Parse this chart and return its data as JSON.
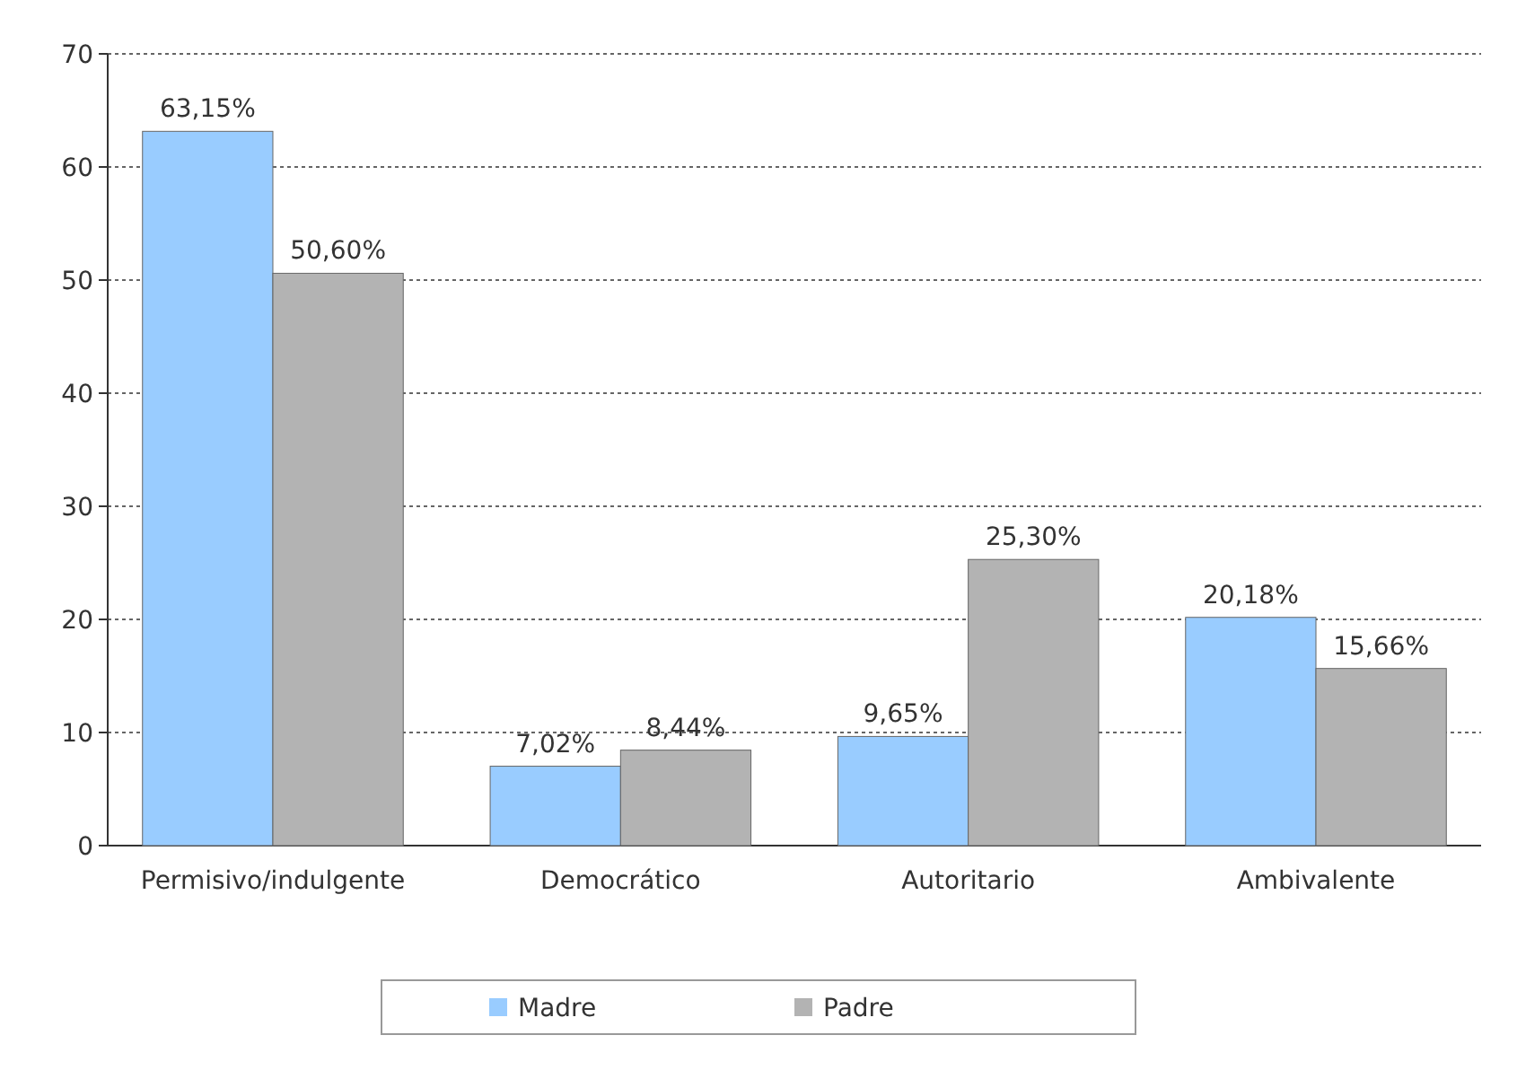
{
  "chart_data": {
    "type": "bar",
    "categories": [
      "Permisivo/indulgente",
      "Democrático",
      "Autoritario",
      "Ambivalente"
    ],
    "series": [
      {
        "name": "Madre",
        "color": "#99ccff",
        "values": [
          63.15,
          7.02,
          9.65,
          20.18
        ],
        "value_labels": [
          "63,15%",
          "7,02%",
          "9,65%",
          "20,18%"
        ]
      },
      {
        "name": "Padre",
        "color": "#b3b3b3",
        "values": [
          50.6,
          8.44,
          25.3,
          15.66
        ],
        "value_labels": [
          "50,60%",
          "8,44%",
          "25,30%",
          "15,66%"
        ]
      }
    ],
    "ylim": [
      0,
      70
    ],
    "yticks": [
      0,
      10,
      20,
      30,
      40,
      50,
      60,
      70
    ],
    "grid": "y",
    "legend": "bottom"
  }
}
